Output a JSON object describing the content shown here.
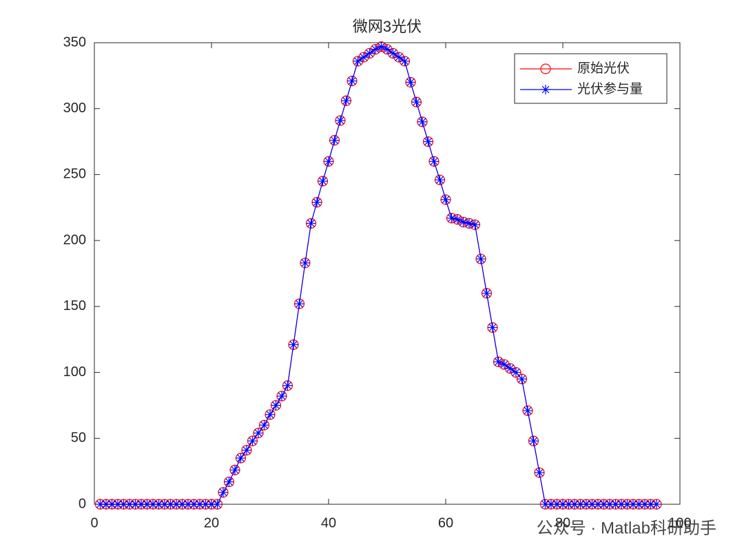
{
  "chart_data": {
    "type": "line",
    "title": "微网3光伏",
    "x": [
      1,
      2,
      3,
      4,
      5,
      6,
      7,
      8,
      9,
      10,
      11,
      12,
      13,
      14,
      15,
      16,
      17,
      18,
      19,
      20,
      21,
      22,
      23,
      24,
      25,
      26,
      27,
      28,
      29,
      30,
      31,
      32,
      33,
      34,
      35,
      36,
      37,
      38,
      39,
      40,
      41,
      42,
      43,
      44,
      45,
      46,
      47,
      48,
      49,
      50,
      51,
      52,
      53,
      54,
      55,
      56,
      57,
      58,
      59,
      60,
      61,
      62,
      63,
      64,
      65,
      66,
      67,
      68,
      69,
      70,
      71,
      72,
      73,
      74,
      75,
      76,
      77,
      78,
      79,
      80,
      81,
      82,
      83,
      84,
      85,
      86,
      87,
      88,
      89,
      90,
      91,
      92,
      93,
      94,
      95,
      96
    ],
    "series": [
      {
        "name": "原始光伏",
        "color": "#ff0000",
        "marker": "circle",
        "values": [
          0,
          0,
          0,
          0,
          0,
          0,
          0,
          0,
          0,
          0,
          0,
          0,
          0,
          0,
          0,
          0,
          0,
          0,
          0,
          0,
          0,
          9,
          17,
          26,
          35,
          41,
          48,
          54,
          60,
          68,
          75,
          82,
          90,
          121,
          152,
          183,
          213,
          229,
          245,
          260,
          276,
          291,
          306,
          321,
          336,
          339,
          342,
          345,
          347,
          345,
          342,
          339,
          336,
          320,
          305,
          290,
          275,
          260,
          246,
          231,
          217,
          216,
          214,
          213,
          212,
          186,
          160,
          134,
          108,
          106,
          103,
          100,
          95,
          71,
          48,
          24,
          0,
          0,
          0,
          0,
          0,
          0,
          0,
          0,
          0,
          0,
          0,
          0,
          0,
          0,
          0,
          0,
          0,
          0,
          0,
          0
        ]
      },
      {
        "name": "光伏参与量",
        "color": "#0000ff",
        "marker": "asterisk",
        "values": [
          0,
          0,
          0,
          0,
          0,
          0,
          0,
          0,
          0,
          0,
          0,
          0,
          0,
          0,
          0,
          0,
          0,
          0,
          0,
          0,
          0,
          9,
          17,
          26,
          35,
          41,
          48,
          54,
          60,
          68,
          75,
          82,
          90,
          121,
          152,
          183,
          213,
          229,
          245,
          260,
          276,
          291,
          306,
          321,
          336,
          339,
          342,
          345,
          347,
          345,
          342,
          339,
          336,
          320,
          305,
          290,
          275,
          260,
          246,
          231,
          217,
          216,
          214,
          213,
          212,
          186,
          160,
          134,
          108,
          106,
          103,
          100,
          95,
          71,
          48,
          24,
          0,
          0,
          0,
          0,
          0,
          0,
          0,
          0,
          0,
          0,
          0,
          0,
          0,
          0,
          0,
          0,
          0,
          0,
          0,
          0
        ]
      }
    ],
    "xlim": [
      0,
      100
    ],
    "xticks": [
      0,
      20,
      40,
      60,
      80,
      100
    ],
    "ylim": [
      0,
      350
    ],
    "yticks": [
      0,
      50,
      100,
      150,
      200,
      250,
      300,
      350
    ],
    "legend": "upper right"
  },
  "watermark": "公众号 · Matlab科研助手"
}
